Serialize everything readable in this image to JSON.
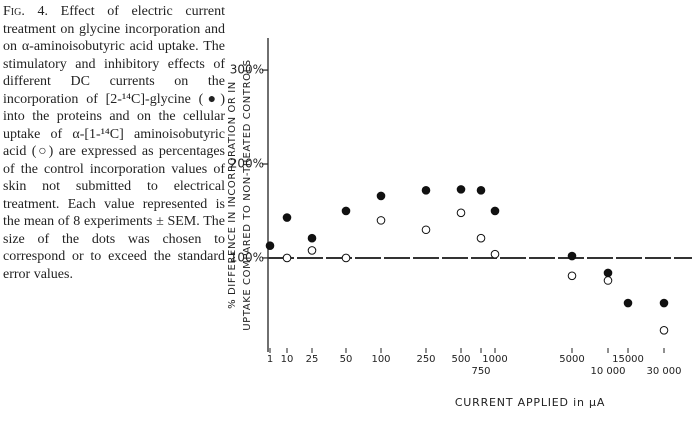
{
  "caption": {
    "label": "Fig. 4.",
    "text": "Effect of electric current treatment on glycine incorporation and on α-aminoisobutyric acid uptake. The stimulatory and inhibitory effects of different DC currents on the incorporation of [2-¹⁴C]-glycine (●) into the proteins and on the cellular uptake of α-[1-¹⁴C] aminoisobutyric acid (○) are expressed as percentages of the control incorporation values of skin not submitted to electrical treatment. Each value represented is the mean of 8 experiments ± SEM. The size of the dots was chosen to correspond or to exceed the standard error values."
  },
  "chart_data": {
    "type": "scatter",
    "y_label": [
      "% DIFFERENCE IN INCORPORATION OR IN",
      "UPTAKE COMPARED TO NON-TREATED CONTROLS"
    ],
    "x_label": "CURRENT APPLIED in µA",
    "categories": [
      "1",
      "10",
      "25",
      "50",
      "100",
      "250",
      "500",
      "750",
      "1000",
      "5000",
      "10 000",
      "15000",
      "30 000"
    ],
    "series": [
      {
        "color": "#111111",
        "hollow": false,
        "values": [
          113,
          143,
          121,
          150,
          166,
          172,
          173,
          172,
          150,
          102,
          84,
          52,
          52
        ]
      },
      {
        "color": "#111111",
        "hollow": true,
        "values": [
          null,
          100,
          108,
          100,
          140,
          130,
          148,
          121,
          104,
          81,
          76,
          null,
          23
        ]
      }
    ],
    "ylim": [
      2,
      332
    ],
    "yticks": [
      {
        "value": 100,
        "label": "100%"
      },
      {
        "value": 200,
        "label": "200%"
      },
      {
        "value": 300,
        "label": "300%"
      }
    ],
    "reference_line": 100
  }
}
